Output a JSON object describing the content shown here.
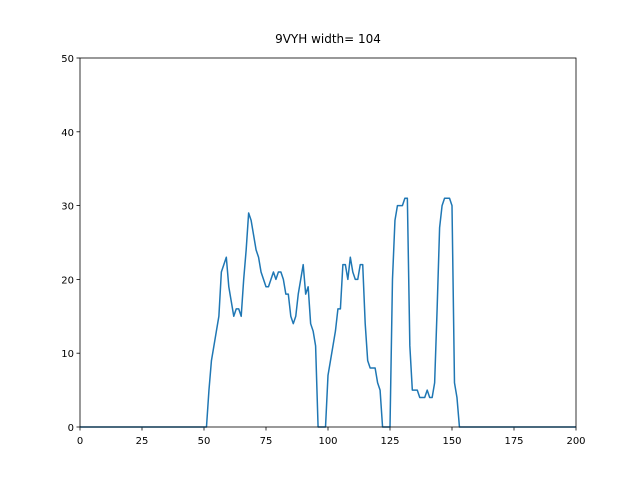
{
  "chart_data": {
    "type": "line",
    "title": "9VYH width= 104",
    "x": [
      0,
      1,
      2,
      3,
      4,
      5,
      6,
      7,
      8,
      9,
      10,
      11,
      12,
      13,
      14,
      15,
      16,
      17,
      18,
      19,
      20,
      21,
      22,
      23,
      24,
      25,
      26,
      27,
      28,
      29,
      30,
      31,
      32,
      33,
      34,
      35,
      36,
      37,
      38,
      39,
      40,
      41,
      42,
      43,
      44,
      45,
      46,
      47,
      48,
      49,
      50,
      51,
      52,
      53,
      54,
      55,
      56,
      57,
      58,
      59,
      60,
      61,
      62,
      63,
      64,
      65,
      66,
      67,
      68,
      69,
      70,
      71,
      72,
      73,
      74,
      75,
      76,
      77,
      78,
      79,
      80,
      81,
      82,
      83,
      84,
      85,
      86,
      87,
      88,
      89,
      90,
      91,
      92,
      93,
      94,
      95,
      96,
      97,
      98,
      99,
      100,
      101,
      102,
      103,
      104,
      105,
      106,
      107,
      108,
      109,
      110,
      111,
      112,
      113,
      114,
      115,
      116,
      117,
      118,
      119,
      120,
      121,
      122,
      123,
      124,
      125,
      126,
      127,
      128,
      129,
      130,
      131,
      132,
      133,
      134,
      135,
      136,
      137,
      138,
      139,
      140,
      141,
      142,
      143,
      144,
      145,
      146,
      147,
      148,
      149,
      150,
      151,
      152,
      153,
      154,
      155,
      156,
      157,
      158,
      159,
      160,
      161,
      162,
      163,
      164,
      165,
      166,
      167,
      168,
      169,
      170,
      171,
      172,
      173,
      174,
      175,
      176,
      177,
      178,
      179,
      180,
      181,
      182,
      183,
      184,
      185,
      186,
      187,
      188,
      189,
      190,
      191,
      192,
      193,
      194,
      195,
      196,
      197,
      198,
      199,
      200
    ],
    "series": [
      {
        "color": "#1f77b4",
        "values": [
          0,
          0,
          0,
          0,
          0,
          0,
          0,
          0,
          0,
          0,
          0,
          0,
          0,
          0,
          0,
          0,
          0,
          0,
          0,
          0,
          0,
          0,
          0,
          0,
          0,
          0,
          0,
          0,
          0,
          0,
          0,
          0,
          0,
          0,
          0,
          0,
          0,
          0,
          0,
          0,
          0,
          0,
          0,
          0,
          0,
          0,
          0,
          0,
          0,
          0,
          0,
          0,
          5,
          9,
          11,
          13,
          15,
          21,
          22,
          23,
          19,
          17,
          15,
          16,
          16,
          15,
          20,
          24,
          29,
          28,
          26,
          24,
          23,
          21,
          20,
          19,
          19,
          20,
          21,
          20,
          21,
          21,
          20,
          18,
          18,
          15,
          14,
          15,
          18,
          20,
          22,
          18,
          19,
          14,
          13,
          11,
          0,
          0,
          0,
          0,
          7,
          9,
          11,
          13,
          16,
          16,
          22,
          22,
          20,
          23,
          21,
          20,
          20,
          22,
          22,
          14,
          9,
          8,
          8,
          8,
          6,
          5,
          0,
          0,
          0,
          0,
          20,
          28,
          30,
          30,
          30,
          31,
          31,
          11,
          5,
          5,
          5,
          4,
          4,
          4,
          5,
          4,
          4,
          6,
          16,
          27,
          30,
          31,
          31,
          31,
          30,
          6,
          4,
          0,
          0,
          0,
          0,
          0,
          0,
          0,
          0,
          0,
          0,
          0,
          0,
          0,
          0,
          0,
          0,
          0,
          0,
          0,
          0,
          0,
          0,
          0,
          0,
          0,
          0,
          0,
          0,
          0,
          0,
          0,
          0,
          0,
          0,
          0,
          0,
          0,
          0,
          0,
          0,
          0,
          0,
          0,
          0,
          0,
          0,
          0,
          0
        ]
      }
    ],
    "xlim": [
      0,
      200
    ],
    "xticks": [
      0,
      25,
      50,
      75,
      100,
      125,
      150,
      175,
      200
    ],
    "ylim": [
      0,
      50
    ],
    "yticks": [
      0,
      10,
      20,
      30,
      40,
      50
    ]
  }
}
